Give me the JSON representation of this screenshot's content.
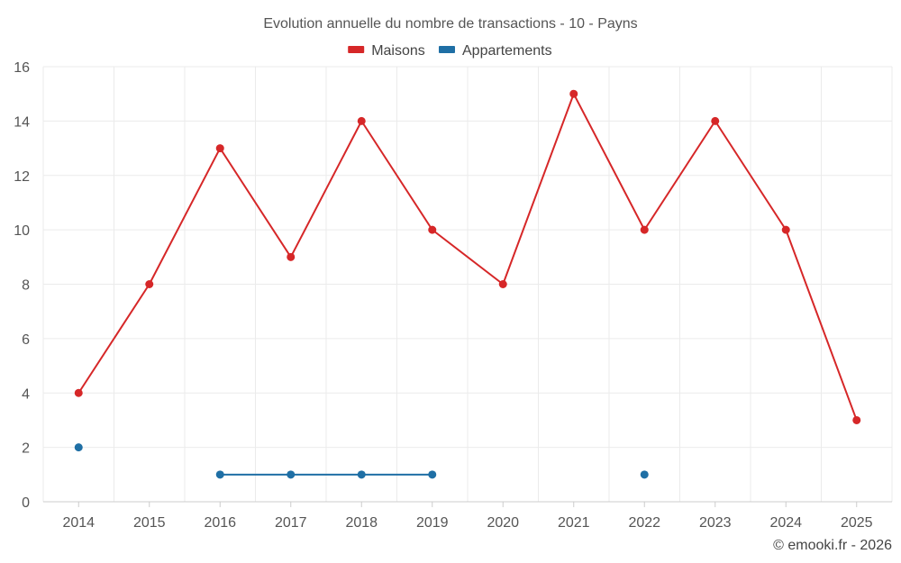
{
  "chart_data": {
    "type": "line",
    "title": "Evolution annuelle du nombre de transactions - 10 - Payns",
    "categories": [
      "2014",
      "2015",
      "2016",
      "2017",
      "2018",
      "2019",
      "2020",
      "2021",
      "2022",
      "2023",
      "2024",
      "2025"
    ],
    "ylim": [
      0,
      16
    ],
    "yticks": [
      "0",
      "2",
      "4",
      "6",
      "8",
      "10",
      "12",
      "14",
      "16"
    ],
    "grid": true,
    "legend_position": "top-center",
    "series": [
      {
        "name": "Maisons",
        "color": "#d62728",
        "values": [
          4,
          8,
          13,
          9,
          14,
          10,
          8,
          15,
          10,
          14,
          10,
          3
        ]
      },
      {
        "name": "Appartements",
        "color": "#1f6fa5",
        "values": [
          2,
          null,
          1,
          1,
          1,
          1,
          null,
          null,
          1,
          null,
          null,
          null
        ]
      }
    ],
    "credit": "© emooki.fr - 2026"
  }
}
